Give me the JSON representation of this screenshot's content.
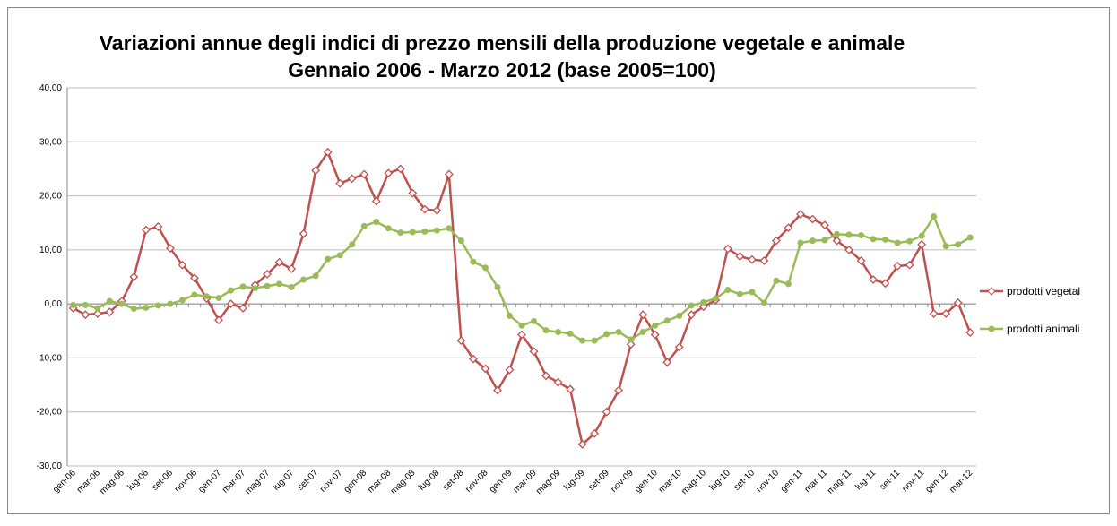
{
  "chart_data": {
    "type": "line",
    "title": [
      "Variazioni annue degli indici di prezzo mensili della produzione vegetale e animale",
      "Gennaio 2006 - Marzo 2012 (base 2005=100)"
    ],
    "categories": [
      "gen-06",
      null,
      "mar-06",
      null,
      "mag-06",
      null,
      "lug-06",
      null,
      "set-06",
      null,
      "nov-06",
      null,
      "gen-07",
      null,
      "mar-07",
      null,
      "mag-07",
      null,
      "lug-07",
      null,
      "set-07",
      null,
      "nov-07",
      null,
      "gen-08",
      null,
      "mar-08",
      null,
      "mag-08",
      null,
      "lug-08",
      null,
      "set-08",
      null,
      "nov-08",
      null,
      "gen-09",
      null,
      "mar-09",
      null,
      "mag-09",
      null,
      "lug-09",
      null,
      "set-09",
      null,
      "nov-09",
      null,
      "gen-10",
      null,
      "mar-10",
      null,
      "mag-10",
      null,
      "lug-10",
      null,
      "set-10",
      null,
      "nov-10",
      null,
      "gen-11",
      null,
      "mar-11",
      null,
      "mag-11",
      null,
      "lug-11",
      null,
      "set-11",
      null,
      "nov-11",
      null,
      "gen-12",
      null,
      "mar-12"
    ],
    "series": [
      {
        "name": "prodotti vegetal",
        "color": "#c0504d",
        "marker": "diamond",
        "values": [
          -0.8,
          -2,
          -1.8,
          -1.5,
          0.5,
          5,
          13.7,
          14.3,
          10.3,
          7.2,
          4.8,
          1,
          -3,
          0,
          -0.8,
          3.5,
          5.5,
          7.7,
          6.5,
          13,
          24.7,
          28.1,
          22.3,
          23.2,
          24,
          19,
          24.2,
          25,
          20.5,
          17.5,
          17.3,
          24,
          -6.8,
          -10.2,
          -12,
          -16,
          -12.2,
          -5.7,
          -8.8,
          -13.3,
          -14.5,
          -15.8,
          -26,
          -24,
          -20,
          -16,
          -7.5,
          -2,
          -5.7,
          -10.8,
          -8,
          -2,
          -0.5,
          0.7,
          10.2,
          8.8,
          8.2,
          8,
          11.7,
          14.1,
          16.6,
          15.7,
          14.6,
          11.7,
          10,
          8,
          4.5,
          3.8,
          7,
          7.2,
          11,
          -1.8,
          -1.8,
          0.2,
          -5.3
        ]
      },
      {
        "name": "prodotti animali",
        "color": "#9bbb59",
        "marker": "circle",
        "values": [
          -0.2,
          -0.2,
          -0.8,
          0.5,
          0,
          -0.9,
          -0.7,
          -0.3,
          0,
          0.7,
          1.7,
          1.4,
          1.1,
          2.5,
          3.2,
          2.9,
          3.3,
          3.7,
          3.1,
          4.5,
          5.2,
          8.3,
          9,
          11,
          14.4,
          15.2,
          14,
          13.2,
          13.3,
          13.4,
          13.6,
          14,
          11.7,
          7.8,
          6.7,
          3.1,
          -2.2,
          -4,
          -3.2,
          -4.9,
          -5.2,
          -5.5,
          -6.8,
          -6.8,
          -5.6,
          -5.2,
          -6.6,
          -5.2,
          -4,
          -3.1,
          -2.2,
          -0.3,
          0.3,
          1,
          2.6,
          1.8,
          2.2,
          0.2,
          4.3,
          3.7,
          11.3,
          11.7,
          11.8,
          12.9,
          12.8,
          12.7,
          12,
          11.9,
          11.3,
          11.6,
          12.6,
          16.2,
          10.7,
          11,
          12.3
        ]
      }
    ],
    "ylim": [
      -30,
      40
    ],
    "yticks": [
      {
        "value": -30,
        "label": "-30,00"
      },
      {
        "value": -20,
        "label": "-20,00"
      },
      {
        "value": -10,
        "label": "-10,00"
      },
      {
        "value": 0,
        "label": "0,00"
      },
      {
        "value": 10,
        "label": "10,00"
      },
      {
        "value": 20,
        "label": "20,00"
      },
      {
        "value": 30,
        "label": "30,00"
      },
      {
        "value": 40,
        "label": "40,00"
      }
    ],
    "grid": true,
    "legend": "right"
  }
}
